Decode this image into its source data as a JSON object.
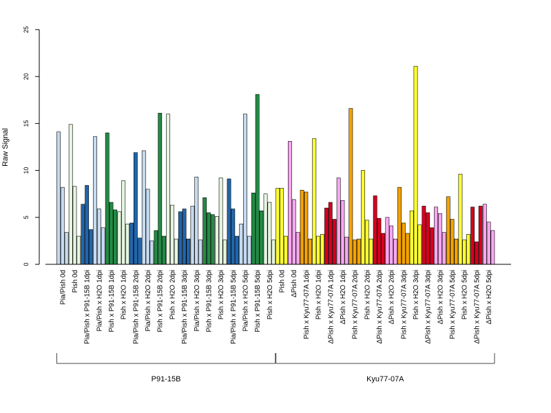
{
  "chart_data": {
    "type": "bar",
    "ylabel": "Raw Signal",
    "ylim": [
      0,
      25
    ],
    "yticks": [
      0,
      5,
      10,
      15,
      20,
      25
    ],
    "grid": false,
    "bar_colors": {
      "light_blue": "#c6dbef",
      "blue": "#2166ac",
      "light_green": "#e5f5e0",
      "green": "#238b45",
      "yellow": "#ffff33",
      "pink": "#f8a8f0",
      "orange": "#f4a300",
      "red": "#d7001f"
    },
    "groups": [
      {
        "label": "Pia/Pish 0d",
        "color": "light_blue",
        "values": [
          14.1,
          8.2,
          3.4
        ]
      },
      {
        "label": "Pish 0d",
        "color": "light_green",
        "values": [
          14.9,
          8.3,
          3.0
        ]
      },
      {
        "label": "Pia/Pish x P91-15B 1dpi",
        "color": "blue",
        "values": [
          6.4,
          8.4,
          3.7
        ]
      },
      {
        "label": "Pia/Pish x H2O 1dpi",
        "color": "light_blue",
        "values": [
          13.6,
          5.9,
          3.9
        ]
      },
      {
        "label": "Pish x P91-15B 1dpi",
        "color": "green",
        "values": [
          14.0,
          6.6,
          5.8
        ]
      },
      {
        "label": "Pish x H2O 1dpi",
        "color": "light_green",
        "values": [
          5.6,
          8.9,
          4.3
        ]
      },
      {
        "label": "Pia/Pish x P91-15B 2dpi",
        "color": "blue",
        "values": [
          4.4,
          11.9,
          2.8
        ]
      },
      {
        "label": "Pia/Pish x H2O 2dpi",
        "color": "light_blue",
        "values": [
          12.1,
          8.0,
          2.5
        ]
      },
      {
        "label": "Pish x P91-15B 2dpi",
        "color": "green",
        "values": [
          3.6,
          16.1,
          3.0
        ]
      },
      {
        "label": "Pish x H2O 2dpi",
        "color": "light_green",
        "values": [
          16.0,
          6.3,
          2.7
        ]
      },
      {
        "label": "Pia/Pish x P91-15B 3dpi",
        "color": "blue",
        "values": [
          5.6,
          5.9,
          2.7
        ]
      },
      {
        "label": "Pia/Pish x H2O 3dpi",
        "color": "light_blue",
        "values": [
          6.2,
          9.3,
          2.6
        ]
      },
      {
        "label": "Pish x P91-15B 3dpi",
        "color": "green",
        "values": [
          7.1,
          5.5,
          5.3
        ]
      },
      {
        "label": "Pish x H2O 3dpi",
        "color": "light_green",
        "values": [
          5.1,
          9.2,
          2.6
        ]
      },
      {
        "label": "Pia/Pish x P91-15B 5dpi",
        "color": "blue",
        "values": [
          9.1,
          5.9,
          3.0
        ]
      },
      {
        "label": "Pia/Pish x H2O 5dpi",
        "color": "light_blue",
        "values": [
          4.3,
          16.0,
          3.0
        ]
      },
      {
        "label": "Pish x P91-15B 5dpi",
        "color": "green",
        "values": [
          7.6,
          18.1,
          5.7
        ]
      },
      {
        "label": "Pish x H2O 5dpi",
        "color": "light_green",
        "values": [
          7.5,
          6.6,
          2.6
        ]
      },
      {
        "label": "Pish 0d",
        "color": "yellow",
        "values": [
          8.1,
          8.1,
          3.0
        ]
      },
      {
        "label": "ΔPish 0d",
        "color": "pink",
        "values": [
          13.1,
          6.9,
          3.4
        ]
      },
      {
        "label": "Pish x Kyu77-07A 1dpi",
        "color": "orange",
        "values": [
          7.9,
          7.7,
          2.7
        ]
      },
      {
        "label": "Pish x H2O 1dpi",
        "color": "yellow",
        "values": [
          13.4,
          3.0,
          3.2
        ]
      },
      {
        "label": "ΔPish x Kyu77-07A 1dpi",
        "color": "red",
        "values": [
          6.0,
          6.6,
          4.8
        ]
      },
      {
        "label": "ΔPish x H2O 1dpi",
        "color": "pink",
        "values": [
          9.2,
          6.8,
          2.9
        ]
      },
      {
        "label": "Pish x Kyu77-07A 2dpi",
        "color": "orange",
        "values": [
          16.6,
          2.6,
          2.7
        ]
      },
      {
        "label": "Pish x H2O 2dpi",
        "color": "yellow",
        "values": [
          10.0,
          4.7,
          2.7
        ]
      },
      {
        "label": "ΔPish x Kyu77-07A 2dpi",
        "color": "red",
        "values": [
          7.3,
          4.9,
          3.3
        ]
      },
      {
        "label": "ΔPish x H2O 2dpi",
        "color": "pink",
        "values": [
          5.0,
          4.1,
          2.7
        ]
      },
      {
        "label": "Pish x Kyu77-07A 3dpi",
        "color": "orange",
        "values": [
          8.2,
          4.4,
          3.3
        ]
      },
      {
        "label": "Pish x H2O 3dpi",
        "color": "yellow",
        "values": [
          5.7,
          21.1,
          4.2
        ]
      },
      {
        "label": "ΔPish x Kyu77-07A 3dpi",
        "color": "red",
        "values": [
          6.2,
          5.5,
          3.9
        ]
      },
      {
        "label": "ΔPish x H2O 3dpi",
        "color": "pink",
        "values": [
          6.1,
          5.4,
          3.4
        ]
      },
      {
        "label": "Pish x Kyu77-07A 5dpi",
        "color": "orange",
        "values": [
          7.2,
          4.8,
          2.7
        ]
      },
      {
        "label": "Pish x H2O 5dpi",
        "color": "yellow",
        "values": [
          9.6,
          2.6,
          3.2
        ]
      },
      {
        "label": "ΔPish x Kyu77-07A 5dpi",
        "color": "red",
        "values": [
          6.1,
          2.4,
          6.2
        ]
      },
      {
        "label": "ΔPish x H2O 5dpi",
        "color": "pink",
        "values": [
          6.4,
          4.5,
          3.6
        ]
      }
    ],
    "sections": [
      {
        "label": "P91-15B",
        "first_group": 0,
        "last_group": 17
      },
      {
        "label": "Kyu77-07A",
        "first_group": 18,
        "last_group": 35
      }
    ]
  }
}
